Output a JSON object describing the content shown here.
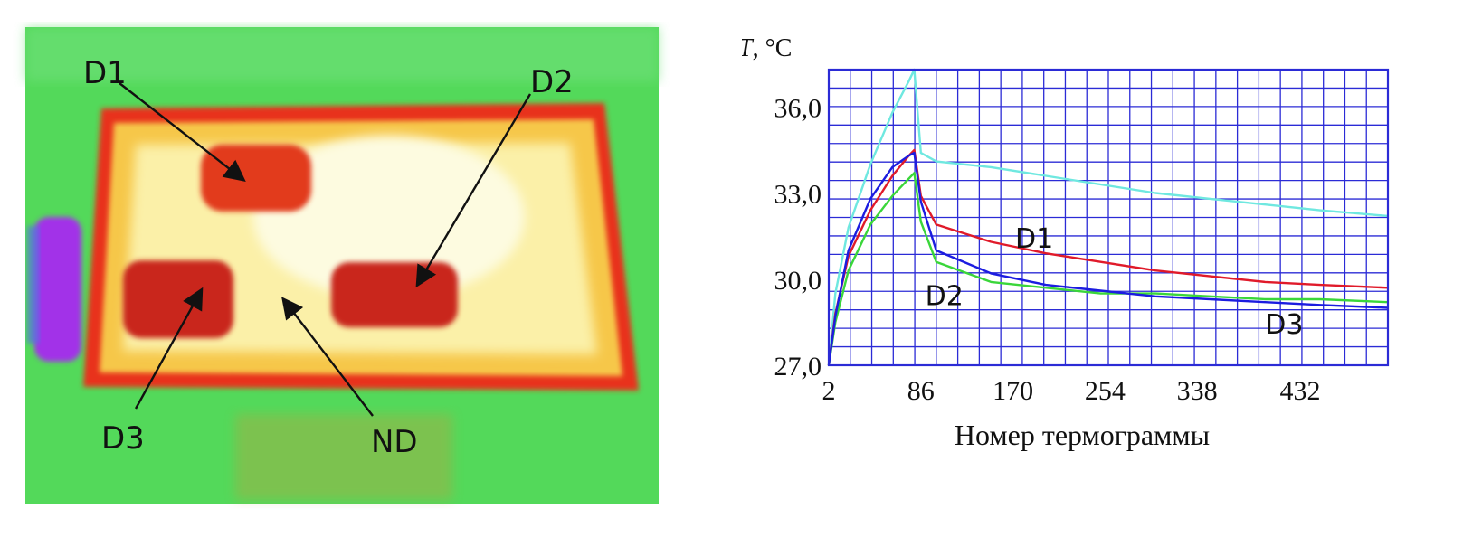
{
  "thermogram": {
    "labels": {
      "d1": "D1",
      "d2": "D2",
      "d3": "D3",
      "nd": "ND"
    },
    "colors": {
      "background": "#53d95a",
      "hot": "#fbf7c0",
      "warm": "#f6c748",
      "defect": "#e23a1e",
      "border": "#e8301c",
      "cold": "#a233e8"
    }
  },
  "chart_data": {
    "type": "line",
    "y_label_italic": "T",
    "y_label_unit": ", °С",
    "xlabel": "Номер термограммы",
    "xlim": [
      2,
      512
    ],
    "ylim": [
      27.0,
      37.3
    ],
    "x_ticks": [
      2,
      86,
      170,
      254,
      338,
      432
    ],
    "x_tick_labels": [
      "2",
      "86",
      "170",
      "254",
      "338",
      "432"
    ],
    "y_ticks": [
      27.0,
      30.0,
      33.0,
      36.0
    ],
    "y_tick_labels": [
      "27,0",
      "30,0",
      "33,0",
      "36,0"
    ],
    "grid": true,
    "grid_color": "#2b2bd6",
    "series": [
      {
        "name": "ND",
        "color": "#6fe8e0",
        "x": [
          2,
          8,
          20,
          40,
          60,
          75,
          80,
          86,
          100,
          150,
          200,
          250,
          300,
          350,
          400,
          450,
          512
        ],
        "y": [
          27.0,
          29.5,
          31.8,
          34.0,
          35.8,
          36.9,
          37.3,
          34.4,
          34.1,
          33.9,
          33.6,
          33.3,
          33.0,
          32.8,
          32.6,
          32.4,
          32.2
        ]
      },
      {
        "name": "D1",
        "color": "#e01a2a",
        "x": [
          2,
          8,
          20,
          40,
          60,
          75,
          80,
          86,
          100,
          150,
          200,
          250,
          300,
          350,
          400,
          450,
          512
        ],
        "y": [
          27.0,
          28.8,
          30.8,
          32.4,
          33.6,
          34.3,
          34.5,
          32.9,
          31.9,
          31.3,
          30.9,
          30.6,
          30.3,
          30.1,
          29.9,
          29.8,
          29.7
        ]
      },
      {
        "name": "D2",
        "color": "#3ad63a",
        "x": [
          2,
          8,
          20,
          40,
          60,
          75,
          80,
          86,
          100,
          150,
          200,
          250,
          300,
          350,
          400,
          450,
          512
        ],
        "y": [
          27.0,
          28.5,
          30.3,
          31.9,
          32.9,
          33.5,
          33.7,
          32.0,
          30.6,
          29.9,
          29.7,
          29.5,
          29.5,
          29.4,
          29.3,
          29.3,
          29.2
        ]
      },
      {
        "name": "D3",
        "color": "#1c1ce0",
        "x": [
          2,
          8,
          20,
          40,
          60,
          75,
          80,
          86,
          100,
          150,
          200,
          250,
          300,
          350,
          400,
          450,
          512
        ],
        "y": [
          27.0,
          28.7,
          31.0,
          32.8,
          33.9,
          34.3,
          34.4,
          32.7,
          31.0,
          30.2,
          29.8,
          29.6,
          29.4,
          29.3,
          29.2,
          29.1,
          29.0
        ]
      }
    ],
    "annotations": [
      {
        "text": "D1",
        "x": 172,
        "y": 31.1
      },
      {
        "text": "D2",
        "x": 90,
        "y": 29.1
      },
      {
        "text": "D3",
        "x": 400,
        "y": 28.1
      }
    ]
  }
}
